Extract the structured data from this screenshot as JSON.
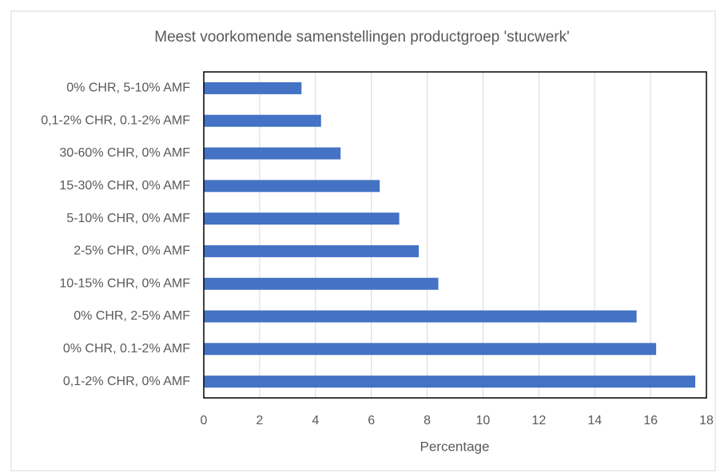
{
  "chart_data": {
    "type": "bar",
    "orientation": "horizontal",
    "title": "Meest voorkomende samenstellingen productgroep 'stucwerk'",
    "xlabel": "Percentage",
    "categories": [
      "0% CHR, 5-10% AMF",
      "0,1-2% CHR, 0.1-2% AMF",
      "30-60% CHR, 0% AMF",
      "15-30% CHR, 0% AMF",
      "5-10% CHR, 0% AMF",
      "2-5% CHR, 0% AMF",
      "10-15% CHR, 0% AMF",
      "0% CHR, 2-5% AMF",
      "0% CHR, 0.1-2% AMF",
      "0,1-2% CHR, 0% AMF"
    ],
    "values": [
      3.5,
      4.2,
      4.9,
      6.3,
      7.0,
      7.7,
      8.4,
      15.5,
      16.2,
      17.6
    ],
    "color": "#4472c4",
    "xlim": [
      0,
      18
    ],
    "xticks": [
      0,
      2,
      4,
      6,
      8,
      10,
      12,
      14,
      16,
      18
    ],
    "grid": true
  }
}
